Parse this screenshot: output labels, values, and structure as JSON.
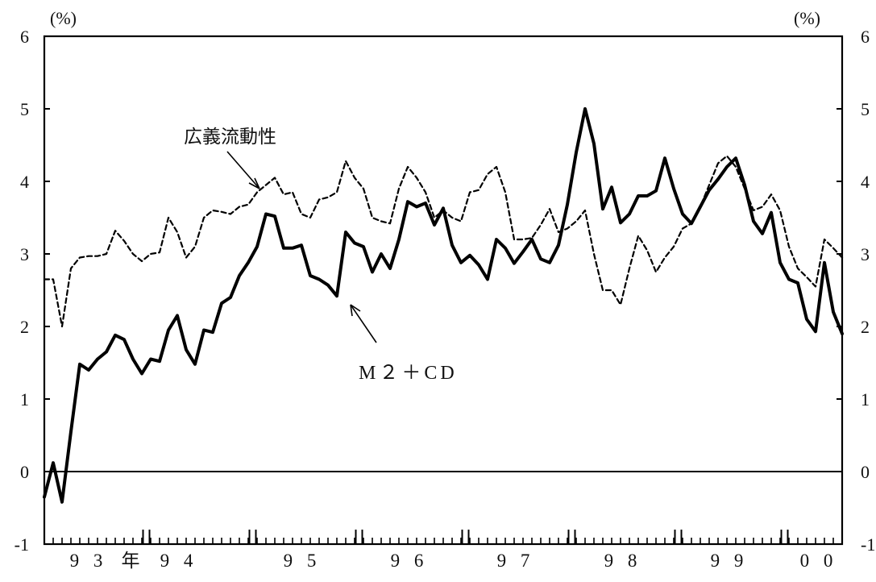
{
  "chart_data": {
    "type": "line",
    "title": "",
    "y_unit_left": "(%)",
    "y_unit_right": "(%)",
    "ylim": [
      -1,
      6
    ],
    "y_ticks": [
      -1,
      0,
      1,
      2,
      3,
      4,
      5,
      6
    ],
    "y_tick_labels_left": [
      "-1",
      "0",
      "1",
      "2",
      "3",
      "4",
      "5",
      "6"
    ],
    "y_tick_labels_right": [
      "-1",
      "0",
      "1",
      "2",
      "3",
      "4",
      "5",
      "6"
    ],
    "x_range": [
      "1993-01",
      "2000-06"
    ],
    "x_year_labels": [
      {
        "label": "93",
        "start_month": 1,
        "end_month": 12
      },
      {
        "label": "年",
        "start_month": 12,
        "end_month": 12
      },
      {
        "label": "94",
        "start_month": 13,
        "end_month": 24
      },
      {
        "label": "95",
        "start_month": 25,
        "end_month": 36
      },
      {
        "label": "96",
        "start_month": 37,
        "end_month": 48
      },
      {
        "label": "97",
        "start_month": 49,
        "end_month": 60
      },
      {
        "label": "98",
        "start_month": 61,
        "end_month": 72
      },
      {
        "label": "99",
        "start_month": 73,
        "end_month": 84
      },
      {
        "label": "00",
        "start_month": 85,
        "end_month": 90
      }
    ],
    "quarter_bars": [
      12,
      24,
      36,
      48,
      60,
      72,
      84
    ],
    "annotations": [
      {
        "label": "広義流動性",
        "series": "broad_liquidity"
      },
      {
        "label": "M２＋CD",
        "series": "m2_cd"
      }
    ],
    "series": [
      {
        "name": "M２＋CD",
        "style": "solid-thick",
        "color": "#000000",
        "values": [
          -0.35,
          0.12,
          -0.42,
          0.55,
          1.48,
          1.4,
          1.55,
          1.65,
          1.88,
          1.82,
          1.55,
          1.35,
          1.55,
          1.52,
          1.95,
          2.15,
          1.68,
          1.48,
          1.95,
          1.92,
          2.32,
          2.4,
          2.7,
          2.88,
          3.1,
          3.55,
          3.52,
          3.08,
          3.08,
          3.12,
          2.7,
          2.65,
          2.57,
          2.42,
          3.3,
          3.15,
          3.1,
          2.75,
          3.0,
          2.8,
          3.2,
          3.72,
          3.65,
          3.7,
          3.4,
          3.63,
          3.12,
          2.88,
          2.98,
          2.85,
          2.65,
          3.2,
          3.08,
          2.87,
          3.03,
          3.2,
          2.93,
          2.88,
          3.12,
          3.68,
          4.4,
          5.0,
          4.52,
          3.62,
          3.92,
          3.43,
          3.55,
          3.8,
          3.8,
          3.87,
          4.32,
          3.9,
          3.55,
          3.42,
          3.65,
          3.88,
          4.03,
          4.2,
          4.32,
          3.95,
          3.45,
          3.28,
          3.57,
          2.88,
          2.65,
          2.6,
          2.1,
          1.93,
          2.88,
          2.2,
          1.9
        ]
      },
      {
        "name": "広義流動性",
        "style": "dashed",
        "color": "#000000",
        "values": [
          2.65,
          2.65,
          2.0,
          2.8,
          2.95,
          2.97,
          2.97,
          3.0,
          3.32,
          3.18,
          3.0,
          2.9,
          3.0,
          3.02,
          3.5,
          3.3,
          2.95,
          3.1,
          3.5,
          3.6,
          3.58,
          3.55,
          3.65,
          3.68,
          3.85,
          3.95,
          4.05,
          3.82,
          3.85,
          3.55,
          3.5,
          3.75,
          3.78,
          3.85,
          4.28,
          4.05,
          3.9,
          3.5,
          3.45,
          3.42,
          3.9,
          4.2,
          4.05,
          3.85,
          3.5,
          3.6,
          3.5,
          3.45,
          3.85,
          3.88,
          4.1,
          4.2,
          3.85,
          3.2,
          3.2,
          3.22,
          3.4,
          3.62,
          3.3,
          3.35,
          3.45,
          3.6,
          3.0,
          2.5,
          2.5,
          2.3,
          2.8,
          3.25,
          3.05,
          2.75,
          2.95,
          3.1,
          3.35,
          3.42,
          3.65,
          3.95,
          4.25,
          4.35,
          4.2,
          3.9,
          3.6,
          3.65,
          3.82,
          3.6,
          3.1,
          2.8,
          2.68,
          2.55,
          3.2,
          3.08,
          2.95
        ]
      }
    ],
    "reference_line": 0,
    "grid": false,
    "legend": "none"
  }
}
